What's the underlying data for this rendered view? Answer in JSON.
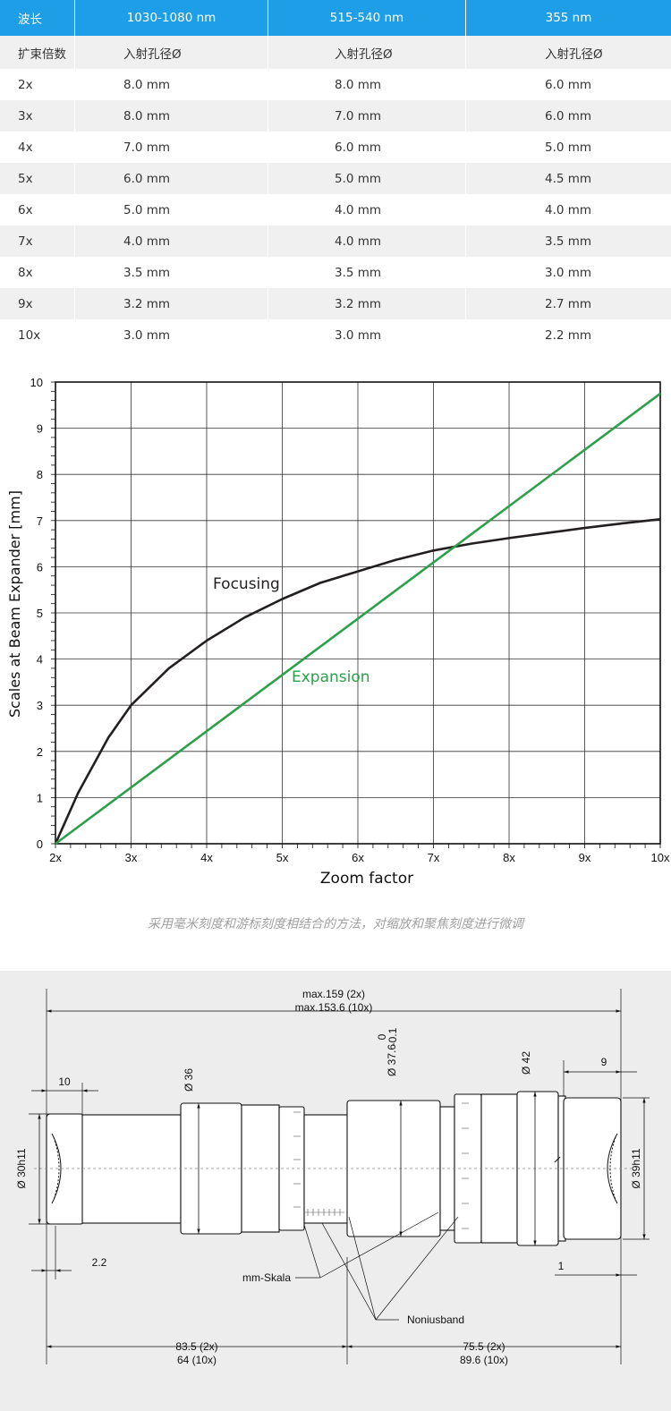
{
  "table": {
    "headers": [
      "波长",
      "1030-1080 nm",
      "515-540 nm",
      "355 nm"
    ],
    "subheader": [
      "扩束倍数",
      "入射孔径Ø",
      "入射孔径Ø",
      "入射孔径Ø"
    ],
    "rows": [
      [
        "2x",
        "8.0 mm",
        "8.0 mm",
        "6.0 mm"
      ],
      [
        "3x",
        "8.0 mm",
        "7.0 mm",
        "6.0 mm"
      ],
      [
        "4x",
        "7.0 mm",
        "6.0 mm",
        "5.0 mm"
      ],
      [
        "5x",
        "6.0 mm",
        "5.0 mm",
        "4.5 mm"
      ],
      [
        "6x",
        "5.0 mm",
        "4.0 mm",
        "4.0 mm"
      ],
      [
        "7x",
        "4.0 mm",
        "4.0 mm",
        "3.5 mm"
      ],
      [
        "8x",
        "3.5 mm",
        "3.5 mm",
        "3.0 mm"
      ],
      [
        "9x",
        "3.2 mm",
        "3.2 mm",
        "2.7 mm"
      ],
      [
        "10x",
        "3.0 mm",
        "3.0 mm",
        "2.2 mm"
      ]
    ]
  },
  "chart_data": {
    "type": "line",
    "title": "",
    "xlabel": "Zoom factor",
    "ylabel": "Scales at Beam Expander [mm]",
    "x_ticks": [
      "2x",
      "3x",
      "4x",
      "5x",
      "6x",
      "7x",
      "8x",
      "9x",
      "10x"
    ],
    "xlim": [
      2,
      10
    ],
    "ylim": [
      0,
      10
    ],
    "y_ticks": [
      0,
      1,
      2,
      3,
      4,
      5,
      6,
      7,
      8,
      9,
      10
    ],
    "grid": true,
    "legend": "none",
    "series": [
      {
        "name": "Focusing",
        "color": "#231f20",
        "x": [
          2.0,
          2.3,
          2.7,
          3.0,
          3.5,
          4.0,
          4.5,
          5.0,
          5.5,
          6.0,
          6.5,
          7.0,
          7.5,
          8.0,
          8.5,
          9.0,
          9.5,
          10.0
        ],
        "y": [
          0.0,
          1.1,
          2.3,
          3.0,
          3.8,
          4.4,
          4.9,
          5.3,
          5.65,
          5.9,
          6.15,
          6.35,
          6.5,
          6.62,
          6.73,
          6.84,
          6.94,
          7.03
        ]
      },
      {
        "name": "Expansion",
        "color": "#2ca04a",
        "x": [
          2.0,
          10.0
        ],
        "y": [
          0.0,
          9.75
        ]
      }
    ],
    "annotations": [
      {
        "text": "Focusing",
        "x": 5.0,
        "y": 5.55
      },
      {
        "text": "Expansion",
        "x": 5.1,
        "y": 3.5
      }
    ]
  },
  "caption": "采用毫米刻度和游标刻度相结合的方法，对缩放和聚焦刻度进行微调",
  "diagram": {
    "overall_line1": "max.159 (2x)",
    "overall_line2": "max.153.6 (10x)",
    "dim_10": "10",
    "dim_d36": "Ø 36",
    "dim_d376": "Ø 37.6",
    "tol_upper": "0",
    "tol_lower": "-0.1",
    "dim_d42": "Ø 42",
    "dim_9": "9",
    "dim_d30h11": "Ø 30h11",
    "dim_d39h11": "Ø 39h11",
    "dim_22": "2.2",
    "dim_1": "1",
    "label_mm_scale": "mm-Skala",
    "label_nonius": "Noniusband",
    "left_len_1": "83.5 (2x)",
    "left_len_2": "64 (10x)",
    "right_len_1": "75.5 (2x)",
    "right_len_2": "89.6 (10x)"
  }
}
